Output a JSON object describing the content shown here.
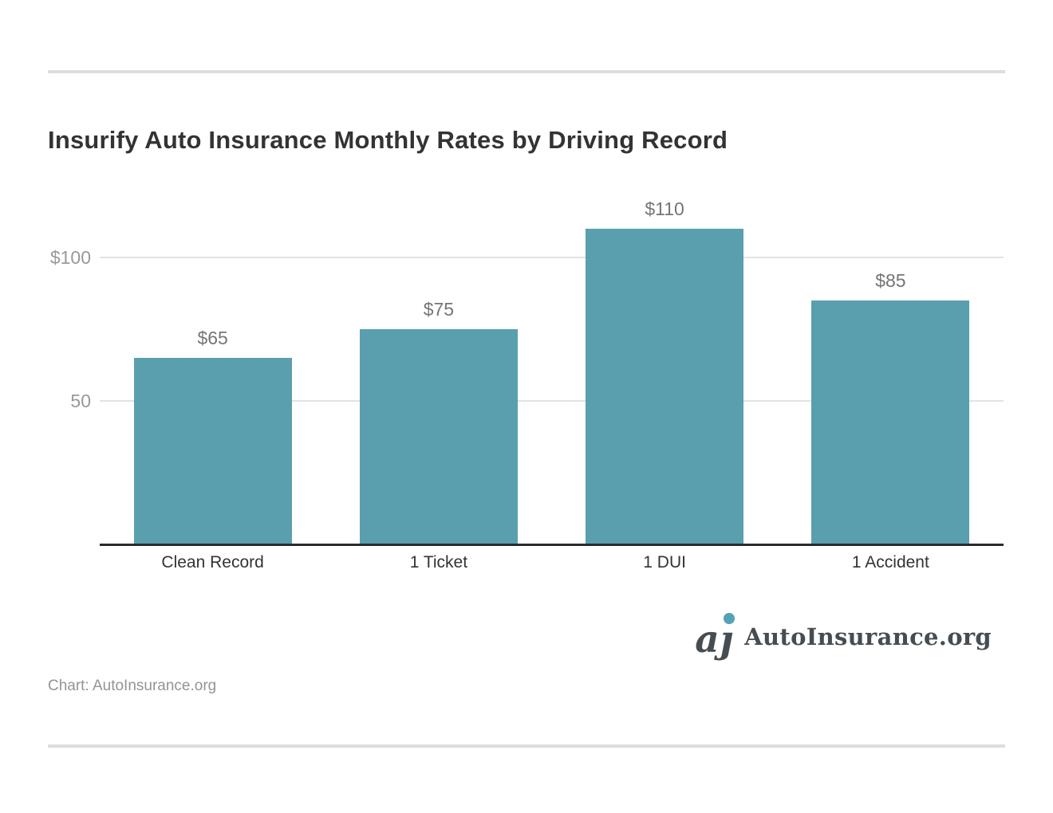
{
  "page": {
    "title": "Insurify Auto Insurance Monthly Rates by Driving Record",
    "credit": "Chart: AutoInsurance.org",
    "logo": {
      "text": "AutoInsurance.org",
      "monogram": "aȷ",
      "dot_color": "#55a1b5",
      "text_color": "#464d52"
    }
  },
  "chart_data": {
    "type": "bar",
    "title": "Insurify Auto Insurance Monthly Rates by Driving Record",
    "categories": [
      "Clean Record",
      "1 Ticket",
      "1 DUI",
      "1 Accident"
    ],
    "values": [
      65,
      75,
      110,
      85
    ],
    "value_labels": [
      "$65",
      "$75",
      "$110",
      "$85"
    ],
    "y_ticks": [
      {
        "value": 100,
        "label": "$100"
      },
      {
        "value": 50,
        "label": "50"
      }
    ],
    "ylim": [
      0,
      129
    ],
    "xlabel": "",
    "ylabel": "",
    "grid": "horizontal-only",
    "legend": "none",
    "bar_color": "#5a9fad",
    "gridline_color": "#e3e3e3",
    "axis_color": "#2b2b2b",
    "tick_label_color": "#999999",
    "value_label_color": "#757575",
    "category_label_color": "#333333"
  }
}
